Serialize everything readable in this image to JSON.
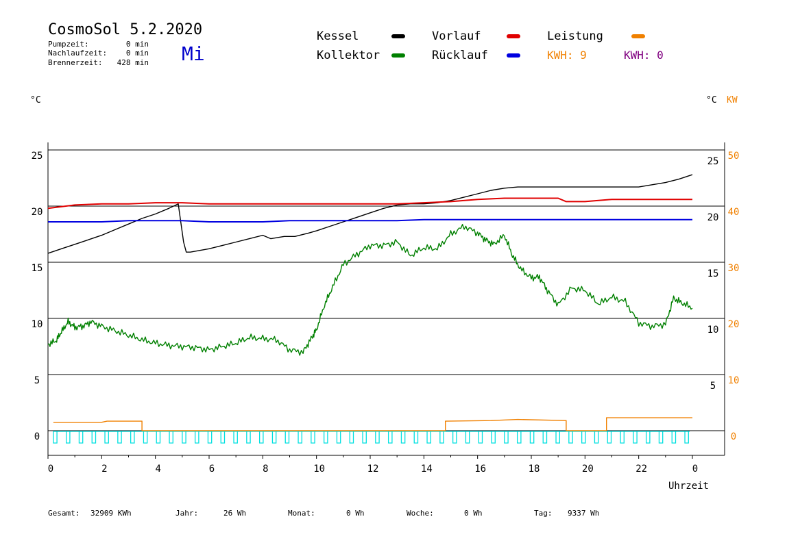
{
  "header": {
    "title": "CosmoSol 5.2.2020",
    "day": "Mi",
    "pump_label": "Pumpzeit:",
    "pump_value": "0 min",
    "nachlauf_label": "Nachlaufzeit:",
    "nachlauf_value": "0 min",
    "brenner_label": "Brennerzeit:",
    "brenner_value": "428 min"
  },
  "legend": {
    "kessel": "Kessel",
    "kollektor": "Kollektor",
    "vorlauf": "Vorlauf",
    "ruecklauf": "Rücklauf",
    "leistung": "Leistung",
    "kwh1": "KWH: 9",
    "kwh2": "KWH: 0"
  },
  "axes": {
    "left_unit": "°C",
    "right_unit_c": "°C",
    "right_unit_kw": "KW",
    "xlabel": "Uhrzeit"
  },
  "footer": {
    "gesamt_label": "Gesamt:",
    "gesamt_value": "32909 KWh",
    "jahr_label": "Jahr:",
    "jahr_value": "26 Wh",
    "monat_label": "Monat:",
    "monat_value": "0 Wh",
    "woche_label": "Woche:",
    "woche_value": "0 Wh",
    "tag_label": "Tag:",
    "tag_value": "9337 Wh"
  },
  "colors": {
    "kessel": "#000000",
    "kollektor": "#008000",
    "vorlauf": "#e00000",
    "ruecklauf": "#0000e0",
    "leistung": "#f08000",
    "kwh2": "#800080",
    "pump": "#00e0e0",
    "title_day": "#0000cc"
  },
  "chart_data": {
    "type": "line",
    "xlim": [
      0,
      24
    ],
    "x_ticks": [
      "0",
      "2",
      "4",
      "6",
      "8",
      "10",
      "12",
      "14",
      "16",
      "18",
      "20",
      "22",
      "0"
    ],
    "left_ticks": [
      "0",
      "5",
      "10",
      "15",
      "20",
      "25"
    ],
    "left_tick_values": [
      0,
      5,
      10,
      15,
      20,
      25
    ],
    "right_c_ticks": [
      "5",
      "10",
      "15",
      "20",
      "25"
    ],
    "right_c_tick_values": [
      4.5,
      9.5,
      14.5,
      19.5,
      24.5
    ],
    "right_kw_ticks": [
      "0",
      "10",
      "20",
      "30",
      "40",
      "50"
    ],
    "right_kw_tick_values": [
      0,
      10,
      20,
      30,
      40,
      50
    ],
    "ylim_left": [
      -2.2,
      25.5
    ],
    "grid_lines_y": [
      0,
      5,
      10,
      15,
      20,
      25
    ],
    "series": [
      {
        "name": "Kessel",
        "color_key": "kessel",
        "x": [
          0,
          0.5,
          1,
          1.5,
          2,
          2.5,
          3,
          3.5,
          4,
          4.5,
          4.85,
          4.95,
          5.05,
          5.15,
          5.3,
          6,
          6.5,
          7,
          7.5,
          8,
          8.3,
          8.8,
          9.2,
          9.7,
          10,
          10.5,
          11,
          11.5,
          12,
          12.5,
          13,
          13.5,
          14,
          14.5,
          15,
          15.5,
          16,
          16.5,
          17,
          17.5,
          18,
          19,
          20,
          21,
          22,
          23,
          23.5,
          24
        ],
        "values": [
          15.8,
          16.2,
          16.6,
          17,
          17.4,
          17.9,
          18.4,
          18.9,
          19.3,
          19.8,
          20.2,
          18.5,
          16.8,
          15.9,
          15.9,
          16.2,
          16.5,
          16.8,
          17.1,
          17.4,
          17.1,
          17.3,
          17.3,
          17.6,
          17.8,
          18.2,
          18.6,
          19,
          19.4,
          19.8,
          20.1,
          20.2,
          20.2,
          20.3,
          20.5,
          20.8,
          21.1,
          21.4,
          21.6,
          21.7,
          21.7,
          21.7,
          21.7,
          21.7,
          21.7,
          22.1,
          22.4,
          22.8
        ]
      },
      {
        "name": "Kollektor",
        "color_key": "kollektor",
        "x": [
          0,
          0.3,
          0.5,
          0.75,
          1,
          1.3,
          1.6,
          2,
          2.5,
          3,
          3.5,
          4,
          4.5,
          5,
          5.5,
          6,
          6.5,
          7,
          7.5,
          8,
          8.5,
          9,
          9.5,
          9.8,
          10,
          10.3,
          10.6,
          11,
          11.5,
          12,
          12.5,
          13,
          13.5,
          14,
          14.5,
          15,
          15.5,
          16,
          16.3,
          16.6,
          17,
          17.3,
          17.6,
          18,
          18.3,
          18.6,
          19,
          19.5,
          20,
          20.5,
          21,
          21.5,
          22,
          22.5,
          23,
          23.3,
          23.6,
          24
        ],
        "values": [
          7.7,
          8,
          8.8,
          9.7,
          9.2,
          9.3,
          9.7,
          9.3,
          8.9,
          8.5,
          8.1,
          7.8,
          7.6,
          7.5,
          7.4,
          7.2,
          7.5,
          7.8,
          8.3,
          8.2,
          8.1,
          7.2,
          7,
          8.2,
          9,
          11.2,
          12.8,
          14.8,
          15.7,
          16.5,
          16.5,
          16.8,
          15.6,
          16.3,
          16.2,
          17.5,
          18.2,
          17.6,
          17,
          16.6,
          17.4,
          15.6,
          14.4,
          13.6,
          13.7,
          12.5,
          11.2,
          12.7,
          12.5,
          11.3,
          11.9,
          11.5,
          9.6,
          9.3,
          9.5,
          11.8,
          11.4,
          10.9
        ]
      },
      {
        "name": "Vorlauf",
        "color_key": "vorlauf",
        "x": [
          0,
          1,
          2,
          3,
          4,
          5,
          6,
          7,
          8,
          9,
          10,
          11,
          12,
          13,
          14,
          15,
          16,
          17,
          18,
          19,
          19.3,
          19.6,
          20,
          21,
          22,
          23,
          24
        ],
        "values": [
          19.8,
          20.1,
          20.2,
          20.2,
          20.3,
          20.3,
          20.2,
          20.2,
          20.2,
          20.2,
          20.2,
          20.2,
          20.2,
          20.2,
          20.3,
          20.4,
          20.6,
          20.7,
          20.7,
          20.7,
          20.4,
          20.4,
          20.4,
          20.6,
          20.6,
          20.6,
          20.6
        ]
      },
      {
        "name": "Rücklauf",
        "color_key": "ruecklauf",
        "x": [
          0,
          1,
          2,
          3,
          4,
          5,
          6,
          7,
          8,
          9,
          10,
          11,
          12,
          13,
          14,
          15,
          16,
          17,
          18,
          19,
          20,
          21,
          22,
          23,
          24
        ],
        "values": [
          18.6,
          18.6,
          18.6,
          18.7,
          18.7,
          18.7,
          18.6,
          18.6,
          18.6,
          18.7,
          18.7,
          18.7,
          18.7,
          18.7,
          18.8,
          18.8,
          18.8,
          18.8,
          18.8,
          18.8,
          18.8,
          18.8,
          18.8,
          18.8,
          18.8
        ]
      },
      {
        "name": "Leistung",
        "color_key": "leistung",
        "unit": "KW",
        "x": [
          0.2,
          2,
          2.2,
          3.5,
          3.5,
          14.8,
          14.8,
          16.5,
          17.5,
          19.3,
          19.3,
          20.8,
          20.8,
          24
        ],
        "values": [
          1.5,
          1.5,
          1.7,
          1.7,
          0,
          0,
          1.7,
          1.8,
          2.0,
          1.8,
          0,
          0,
          2.3,
          2.3
        ]
      }
    ],
    "pump_cycles": {
      "name": "Pumpe",
      "color_key": "pump",
      "cycle_hours": 0.48,
      "start": 0.2,
      "end": 23.9
    }
  }
}
